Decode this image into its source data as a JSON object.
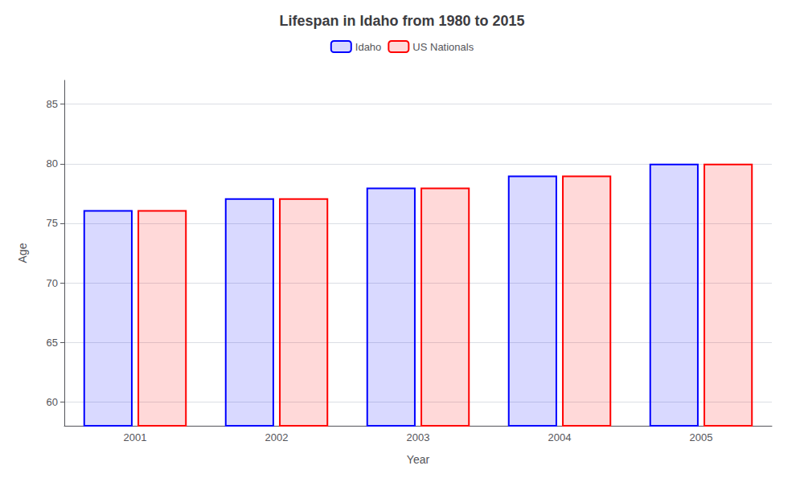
{
  "chart_data": {
    "type": "bar",
    "title": "Lifespan in Idaho from 1980 to 2015",
    "x_label": "Year",
    "y_label": "Age",
    "categories": [
      "2001",
      "2002",
      "2003",
      "2004",
      "2005"
    ],
    "series": [
      {
        "name": "Idaho",
        "color": "#0000ff",
        "values": [
          76.1,
          77.1,
          78.0,
          79.0,
          80.0
        ]
      },
      {
        "name": "US Nationals",
        "color": "#ff0000",
        "values": [
          76.1,
          77.1,
          78.0,
          79.0,
          80.0
        ]
      }
    ],
    "ylim": [
      58,
      87
    ],
    "yticks": [
      60,
      65,
      70,
      75,
      80,
      85
    ],
    "grid": true,
    "legend": "top"
  }
}
